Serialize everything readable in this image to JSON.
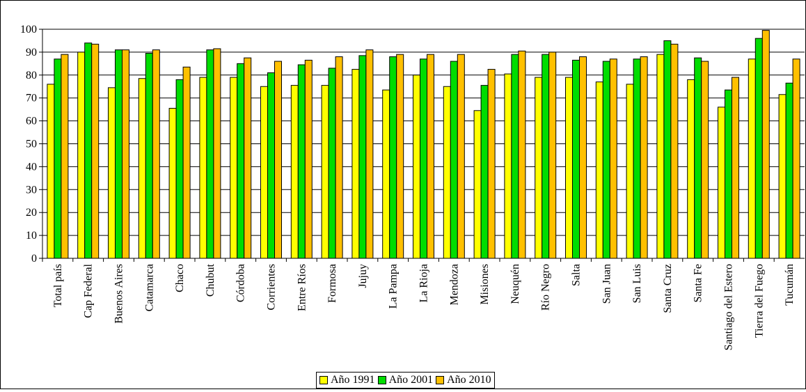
{
  "chart_data": {
    "type": "bar",
    "title": "",
    "xlabel": "",
    "ylabel": "",
    "ylim": [
      0,
      100
    ],
    "yticks": [
      0,
      10,
      20,
      30,
      40,
      50,
      60,
      70,
      80,
      90,
      100
    ],
    "grid": "horizontal",
    "legend_position": "bottom-center",
    "categories": [
      "Total país",
      "Cap Federal",
      "Buenos Aires",
      "Catamarca",
      "Chaco",
      "Chubut",
      "Córdoba",
      "Corrientes",
      "Entre Ríos",
      "Formosa",
      "Jujuy",
      "La Pampa",
      "La Rioja",
      "Mendoza",
      "Misiones",
      "Neuquén",
      "Río Negro",
      "Salta",
      "San Juan",
      "San Luis",
      "Santa Cruz",
      "Santa Fe",
      "Santiago del Estero",
      "Tierra del Fuego",
      "Tucumán"
    ],
    "series": [
      {
        "name": "Año 1991",
        "color": "#ffff00",
        "values": [
          76,
          90,
          74.5,
          78.5,
          65.5,
          79,
          79,
          75,
          75.5,
          75.5,
          82.5,
          73.5,
          80,
          75,
          64.5,
          80.5,
          79,
          79,
          77,
          76,
          89,
          78,
          66,
          87,
          71.5
        ]
      },
      {
        "name": "Año 2001",
        "color": "#00dd00",
        "values": [
          87,
          94,
          91,
          89.5,
          78,
          91,
          85,
          81,
          84.5,
          83,
          88.5,
          88,
          87,
          86,
          75.5,
          89,
          89,
          86.5,
          86,
          87,
          95,
          87.5,
          73.5,
          96,
          76.5
        ]
      },
      {
        "name": "Año 2010",
        "color": "#ffc000",
        "values": [
          89,
          93.5,
          91,
          91,
          83.5,
          91.5,
          87.5,
          86,
          86.5,
          88,
          91,
          89,
          89,
          89,
          82.5,
          90.5,
          90,
          88,
          87,
          88,
          93.5,
          86,
          79,
          99.5,
          87
        ]
      }
    ]
  }
}
